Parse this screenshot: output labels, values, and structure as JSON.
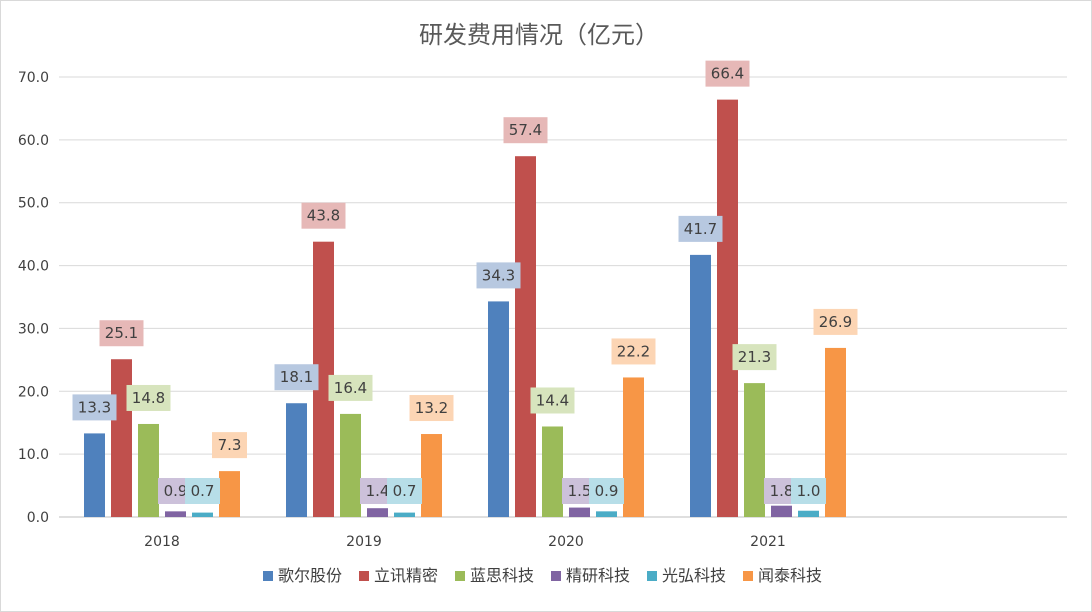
{
  "chart_data": {
    "type": "bar",
    "title": "研发费用情况（亿元）",
    "xlabel": "",
    "ylabel": "",
    "categories": [
      "2018",
      "2019",
      "2020",
      "2021"
    ],
    "ylim": [
      0,
      70
    ],
    "yticks": [
      "0.0",
      "10.0",
      "20.0",
      "30.0",
      "40.0",
      "50.0",
      "60.0",
      "70.0"
    ],
    "grid": true,
    "legend_position": "bottom",
    "series": [
      {
        "name": "歌尔股份",
        "color": "#4f81bd",
        "label_bg": "#b7c8e0",
        "values": [
          13.3,
          18.1,
          34.3,
          41.7
        ],
        "labels": [
          "13.3",
          "18.1",
          "34.3",
          "41.7"
        ]
      },
      {
        "name": "立讯精密",
        "color": "#c0504d",
        "label_bg": "#e6b8b7",
        "values": [
          25.1,
          43.8,
          57.4,
          66.4
        ],
        "labels": [
          "25.1",
          "43.8",
          "57.4",
          "66.4"
        ]
      },
      {
        "name": "蓝思科技",
        "color": "#9bbb59",
        "label_bg": "#d7e4bd",
        "values": [
          14.8,
          16.4,
          14.4,
          21.3
        ],
        "labels": [
          "14.8",
          "16.4",
          "14.4",
          "21.3"
        ]
      },
      {
        "name": "精研科技",
        "color": "#8064a2",
        "label_bg": "#ccc1da",
        "values": [
          0.9,
          1.4,
          1.5,
          1.8
        ],
        "labels": [
          "0.9",
          "1.4",
          "1.5",
          "1.8"
        ]
      },
      {
        "name": "光弘科技",
        "color": "#4bacc6",
        "label_bg": "#b7dee8",
        "values": [
          0.7,
          0.7,
          0.9,
          1.0
        ],
        "labels": [
          "0.7",
          "0.7",
          "0.9",
          "1.0"
        ]
      },
      {
        "name": "闻泰科技",
        "color": "#f79646",
        "label_bg": "#fcd5b4",
        "values": [
          7.3,
          13.2,
          22.2,
          26.9
        ],
        "labels": [
          "7.3",
          "13.2",
          "22.2",
          "26.9"
        ]
      }
    ]
  }
}
